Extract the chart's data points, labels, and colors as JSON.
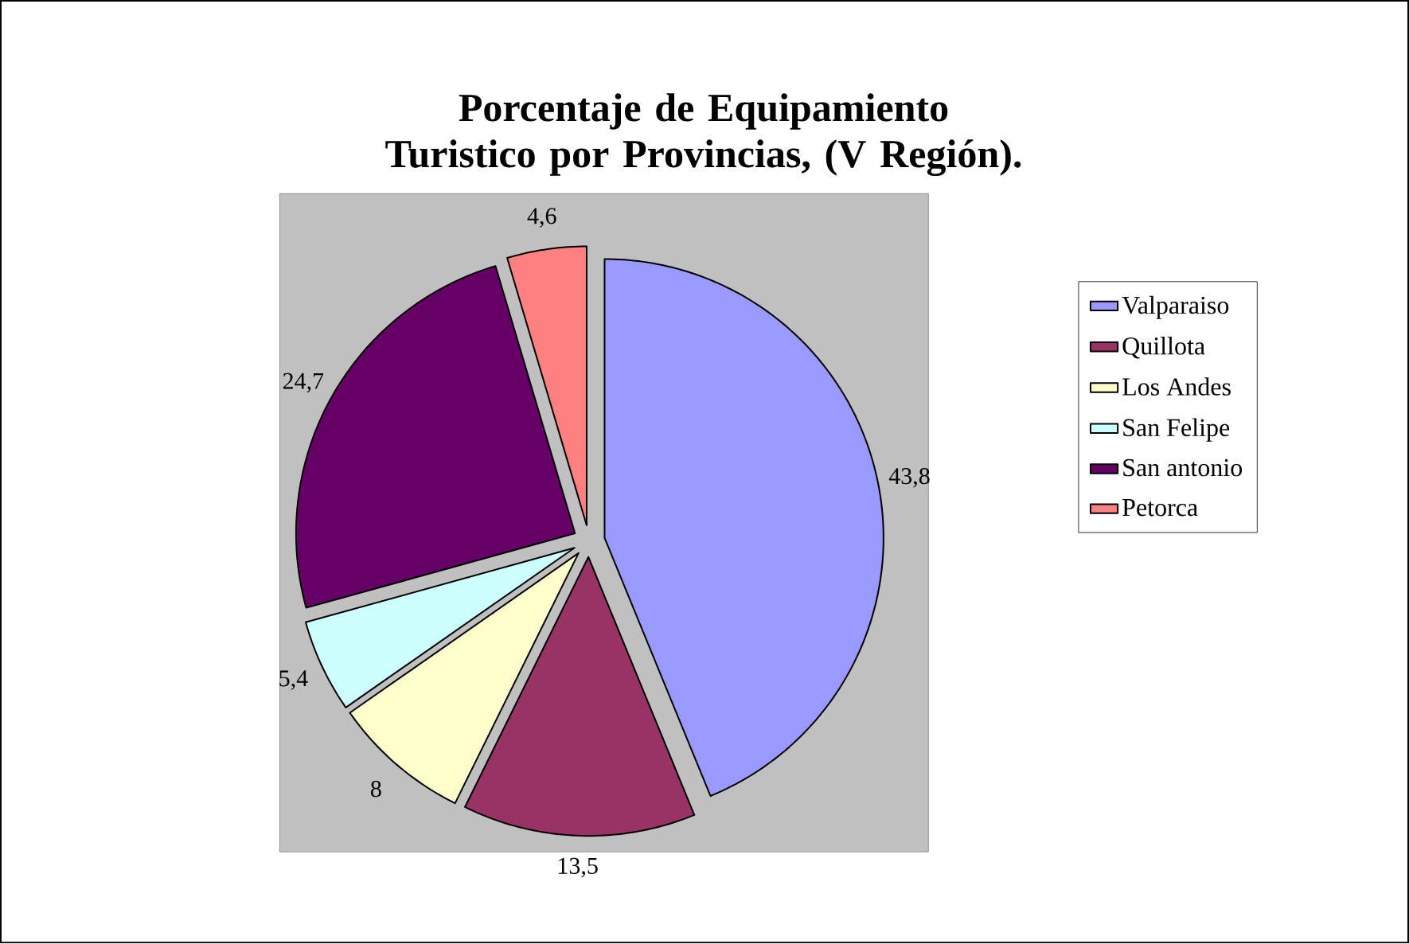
{
  "chart_data": {
    "type": "pie",
    "title": "Porcentaje de Equipamiento Turistico por Provincias, (V Región).",
    "categories": [
      "Valparaiso",
      "Quillota",
      "Los Andes",
      "San Felipe",
      "San antonio",
      "Petorca"
    ],
    "values": [
      43.8,
      13.5,
      8,
      5.4,
      24.7,
      4.6
    ],
    "value_labels": [
      "43,8",
      "13,5",
      "8",
      "5,4",
      "24,7",
      "4,6"
    ],
    "colors": [
      "#9999ff",
      "#993366",
      "#ffffcc",
      "#ccffff",
      "#660066",
      "#ff8080"
    ],
    "legend": "right"
  }
}
